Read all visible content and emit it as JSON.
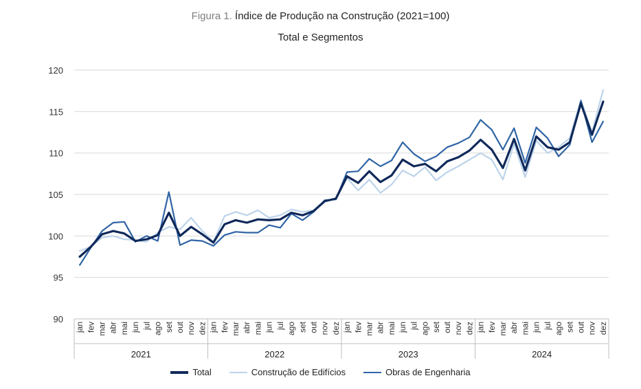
{
  "chart_data": {
    "type": "line",
    "title_prefix": "Figura 1.",
    "title": "Índice de Produção na Construção (2021=100)",
    "subtitle": "Total e Segmentos",
    "ylim": [
      90,
      120
    ],
    "yticks": [
      90,
      95,
      100,
      105,
      110,
      115,
      120
    ],
    "month_labels": [
      "jan",
      "fev",
      "mar",
      "abr",
      "mai",
      "jun",
      "jul",
      "ago",
      "set",
      "out",
      "nov",
      "dez"
    ],
    "years": [
      "2021",
      "2022",
      "2023",
      "2024"
    ],
    "series": [
      {
        "name": "Total",
        "color": "#10295a",
        "width": 3.2,
        "values": [
          97.5,
          98.7,
          100.2,
          100.6,
          100.3,
          99.4,
          99.6,
          100.1,
          102.8,
          100.0,
          101.1,
          100.2,
          99.2,
          101.4,
          101.9,
          101.6,
          102.0,
          101.9,
          102.0,
          102.8,
          102.5,
          103.0,
          104.2,
          104.5,
          107.2,
          106.4,
          107.8,
          106.5,
          107.3,
          109.2,
          108.4,
          108.7,
          107.8,
          109.0,
          109.5,
          110.3,
          111.6,
          110.4,
          108.2,
          111.7,
          107.9,
          112.0,
          110.7,
          110.4,
          111.3,
          116.0,
          112.2,
          116.2
        ]
      },
      {
        "name": "Construção de Edifícios",
        "color": "#bcd3ea",
        "width": 2.2,
        "values": [
          98.2,
          98.7,
          99.8,
          100.0,
          99.6,
          99.5,
          99.3,
          100.4,
          101.1,
          100.8,
          102.2,
          100.6,
          99.3,
          102.4,
          102.9,
          102.5,
          103.1,
          102.2,
          102.5,
          103.2,
          102.9,
          103.1,
          104.3,
          104.4,
          107.0,
          105.5,
          106.8,
          105.2,
          106.2,
          107.9,
          107.2,
          108.3,
          106.7,
          107.7,
          108.4,
          109.2,
          110.0,
          109.2,
          106.8,
          111.1,
          107.1,
          111.5,
          110.0,
          110.7,
          111.8,
          116.4,
          112.5,
          117.6
        ]
      },
      {
        "name": "Obras de Engenharia",
        "color": "#2f64a5",
        "width": 2.2,
        "values": [
          96.5,
          98.6,
          100.6,
          101.6,
          101.7,
          99.3,
          100.0,
          99.4,
          105.3,
          98.9,
          99.5,
          99.4,
          98.8,
          100.1,
          100.5,
          100.4,
          100.4,
          101.3,
          101.0,
          102.7,
          101.9,
          102.9,
          104.3,
          104.4,
          107.7,
          107.8,
          109.3,
          108.4,
          109.1,
          111.3,
          109.9,
          109.0,
          109.6,
          110.7,
          111.2,
          111.9,
          114.0,
          112.8,
          110.4,
          113.0,
          108.8,
          113.1,
          111.8,
          109.6,
          111.0,
          116.3,
          111.3,
          113.8
        ]
      }
    ]
  }
}
